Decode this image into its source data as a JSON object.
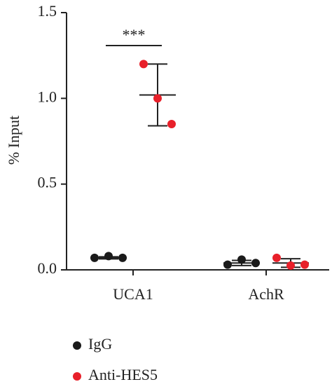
{
  "chart_data": {
    "type": "dotplot",
    "ylabel": "% Input",
    "categories": [
      "UCA1",
      "AchR"
    ],
    "series": [
      {
        "name": "IgG",
        "color": "#1a1a1a",
        "values": [
          [
            0.07,
            0.08,
            0.07
          ],
          [
            0.03,
            0.06,
            0.04
          ]
        ],
        "means": [
          0.07,
          0.04
        ],
        "errors": [
          0.006,
          0.015
        ]
      },
      {
        "name": "Anti-HES5",
        "color": "#e8202a",
        "values": [
          [
            1.2,
            1.0,
            0.85
          ],
          [
            0.07,
            0.025,
            0.03
          ]
        ],
        "means": [
          1.02,
          0.04
        ],
        "errors": [
          0.18,
          0.025
        ]
      }
    ],
    "ylim": [
      0,
      1.5
    ],
    "yticks": [
      {
        "value": 0,
        "label": "0.0"
      },
      0.5,
      {
        "value": 1,
        "label": "1.0"
      },
      {
        "value": 1.5,
        "label": "1.5"
      }
    ],
    "significance": "***"
  }
}
